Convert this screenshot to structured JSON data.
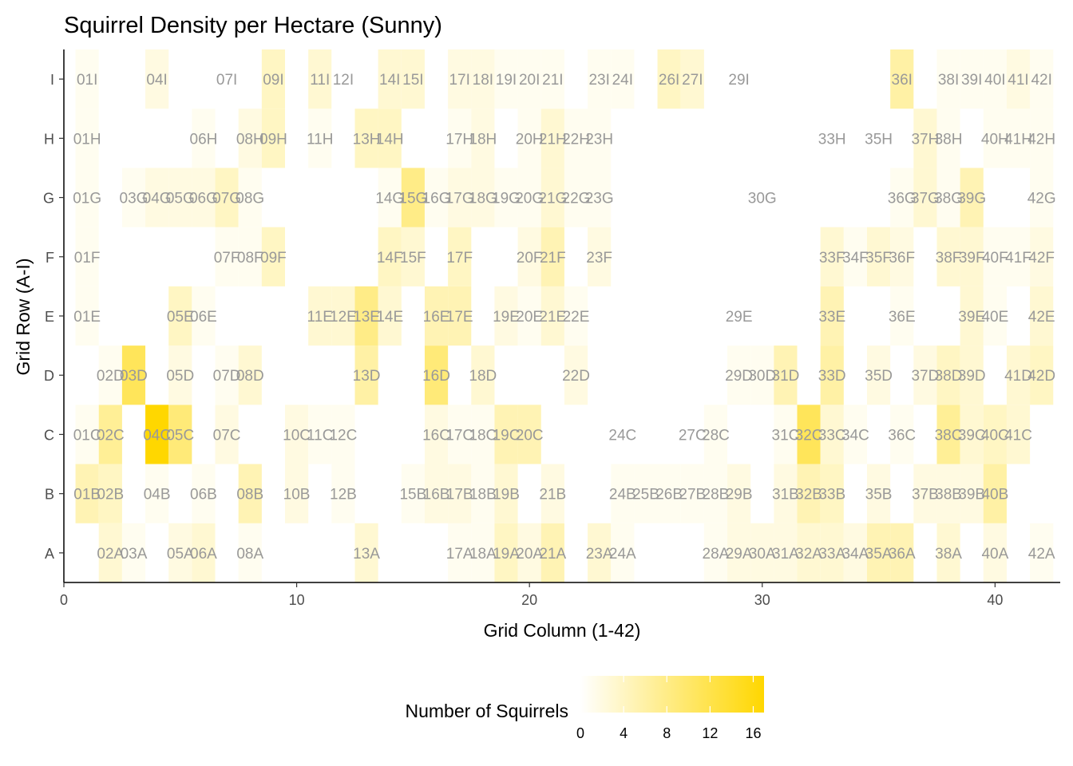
{
  "chart_data": {
    "type": "heatmap",
    "title": "Squirrel Density per Hectare (Sunny)",
    "xlabel": "Grid Column (1-42)",
    "ylabel": "Grid Row (A-I)",
    "xlim": [
      0,
      42.8
    ],
    "x_ticks": [
      0,
      10,
      20,
      30,
      40
    ],
    "y_categories": [
      "A",
      "B",
      "C",
      "D",
      "E",
      "F",
      "G",
      "H",
      "I"
    ],
    "legend": {
      "title": "Number of Squirrels",
      "position": "bottom",
      "ticks": [
        0,
        4,
        8,
        12,
        16
      ],
      "range": [
        0,
        17
      ],
      "color_low": "#ffffff",
      "color_high": "#ffd700"
    },
    "cells": [
      {
        "col": 2,
        "row": "A",
        "value": 3
      },
      {
        "col": 3,
        "row": "A",
        "value": 1
      },
      {
        "col": 5,
        "row": "A",
        "value": 2
      },
      {
        "col": 6,
        "row": "A",
        "value": 3
      },
      {
        "col": 8,
        "row": "A",
        "value": 1
      },
      {
        "col": 13,
        "row": "A",
        "value": 3
      },
      {
        "col": 17,
        "row": "A",
        "value": 1
      },
      {
        "col": 18,
        "row": "A",
        "value": 1
      },
      {
        "col": 19,
        "row": "A",
        "value": 4
      },
      {
        "col": 20,
        "row": "A",
        "value": 2
      },
      {
        "col": 21,
        "row": "A",
        "value": 5
      },
      {
        "col": 23,
        "row": "A",
        "value": 3
      },
      {
        "col": 24,
        "row": "A",
        "value": 1
      },
      {
        "col": 28,
        "row": "A",
        "value": 1
      },
      {
        "col": 29,
        "row": "A",
        "value": 2
      },
      {
        "col": 30,
        "row": "A",
        "value": 2
      },
      {
        "col": 31,
        "row": "A",
        "value": 2
      },
      {
        "col": 32,
        "row": "A",
        "value": 3
      },
      {
        "col": 33,
        "row": "A",
        "value": 3
      },
      {
        "col": 34,
        "row": "A",
        "value": 2
      },
      {
        "col": 35,
        "row": "A",
        "value": 5
      },
      {
        "col": 36,
        "row": "A",
        "value": 5
      },
      {
        "col": 38,
        "row": "A",
        "value": 3
      },
      {
        "col": 40,
        "row": "A",
        "value": 2
      },
      {
        "col": 42,
        "row": "A",
        "value": 1
      },
      {
        "col": 1,
        "row": "B",
        "value": 5
      },
      {
        "col": 2,
        "row": "B",
        "value": 4
      },
      {
        "col": 4,
        "row": "B",
        "value": 1
      },
      {
        "col": 6,
        "row": "B",
        "value": 1
      },
      {
        "col": 8,
        "row": "B",
        "value": 5
      },
      {
        "col": 10,
        "row": "B",
        "value": 2
      },
      {
        "col": 12,
        "row": "B",
        "value": 1
      },
      {
        "col": 15,
        "row": "B",
        "value": 1
      },
      {
        "col": 16,
        "row": "B",
        "value": 2
      },
      {
        "col": 17,
        "row": "B",
        "value": 2
      },
      {
        "col": 18,
        "row": "B",
        "value": 1
      },
      {
        "col": 19,
        "row": "B",
        "value": 3
      },
      {
        "col": 21,
        "row": "B",
        "value": 2
      },
      {
        "col": 24,
        "row": "B",
        "value": 1
      },
      {
        "col": 25,
        "row": "B",
        "value": 1
      },
      {
        "col": 26,
        "row": "B",
        "value": 1
      },
      {
        "col": 27,
        "row": "B",
        "value": 1
      },
      {
        "col": 28,
        "row": "B",
        "value": 1
      },
      {
        "col": 29,
        "row": "B",
        "value": 2
      },
      {
        "col": 31,
        "row": "B",
        "value": 2
      },
      {
        "col": 32,
        "row": "B",
        "value": 5
      },
      {
        "col": 33,
        "row": "B",
        "value": 4
      },
      {
        "col": 35,
        "row": "B",
        "value": 2
      },
      {
        "col": 37,
        "row": "B",
        "value": 2
      },
      {
        "col": 38,
        "row": "B",
        "value": 2
      },
      {
        "col": 39,
        "row": "B",
        "value": 2
      },
      {
        "col": 40,
        "row": "B",
        "value": 6
      },
      {
        "col": 1,
        "row": "C",
        "value": 1
      },
      {
        "col": 2,
        "row": "C",
        "value": 7
      },
      {
        "col": 4,
        "row": "C",
        "value": 17
      },
      {
        "col": 5,
        "row": "C",
        "value": 9
      },
      {
        "col": 7,
        "row": "C",
        "value": 2
      },
      {
        "col": 10,
        "row": "C",
        "value": 2
      },
      {
        "col": 11,
        "row": "C",
        "value": 1
      },
      {
        "col": 12,
        "row": "C",
        "value": 1
      },
      {
        "col": 16,
        "row": "C",
        "value": 2
      },
      {
        "col": 17,
        "row": "C",
        "value": 1
      },
      {
        "col": 18,
        "row": "C",
        "value": 1
      },
      {
        "col": 19,
        "row": "C",
        "value": 5
      },
      {
        "col": 20,
        "row": "C",
        "value": 5
      },
      {
        "col": 24,
        "row": "C",
        "value": 0
      },
      {
        "col": 27,
        "row": "C",
        "value": 0
      },
      {
        "col": 28,
        "row": "C",
        "value": 1
      },
      {
        "col": 31,
        "row": "C",
        "value": 1
      },
      {
        "col": 32,
        "row": "C",
        "value": 11
      },
      {
        "col": 33,
        "row": "C",
        "value": 3
      },
      {
        "col": 34,
        "row": "C",
        "value": 1
      },
      {
        "col": 36,
        "row": "C",
        "value": 1
      },
      {
        "col": 38,
        "row": "C",
        "value": 7
      },
      {
        "col": 39,
        "row": "C",
        "value": 3
      },
      {
        "col": 40,
        "row": "C",
        "value": 4
      },
      {
        "col": 41,
        "row": "C",
        "value": 3
      },
      {
        "col": 2,
        "row": "D",
        "value": 1
      },
      {
        "col": 3,
        "row": "D",
        "value": 11
      },
      {
        "col": 5,
        "row": "D",
        "value": 2
      },
      {
        "col": 7,
        "row": "D",
        "value": 1
      },
      {
        "col": 8,
        "row": "D",
        "value": 3
      },
      {
        "col": 13,
        "row": "D",
        "value": 6
      },
      {
        "col": 16,
        "row": "D",
        "value": 9
      },
      {
        "col": 18,
        "row": "D",
        "value": 3
      },
      {
        "col": 22,
        "row": "D",
        "value": 2
      },
      {
        "col": 29,
        "row": "D",
        "value": 1
      },
      {
        "col": 30,
        "row": "D",
        "value": 1
      },
      {
        "col": 31,
        "row": "D",
        "value": 5
      },
      {
        "col": 33,
        "row": "D",
        "value": 6
      },
      {
        "col": 35,
        "row": "D",
        "value": 2
      },
      {
        "col": 37,
        "row": "D",
        "value": 2
      },
      {
        "col": 38,
        "row": "D",
        "value": 4
      },
      {
        "col": 39,
        "row": "D",
        "value": 3
      },
      {
        "col": 41,
        "row": "D",
        "value": 3
      },
      {
        "col": 42,
        "row": "D",
        "value": 4
      },
      {
        "col": 1,
        "row": "E",
        "value": 1
      },
      {
        "col": 5,
        "row": "E",
        "value": 4
      },
      {
        "col": 6,
        "row": "E",
        "value": 1
      },
      {
        "col": 11,
        "row": "E",
        "value": 3
      },
      {
        "col": 12,
        "row": "E",
        "value": 3
      },
      {
        "col": 13,
        "row": "E",
        "value": 8
      },
      {
        "col": 14,
        "row": "E",
        "value": 3
      },
      {
        "col": 16,
        "row": "E",
        "value": 5
      },
      {
        "col": 17,
        "row": "E",
        "value": 5
      },
      {
        "col": 19,
        "row": "E",
        "value": 2
      },
      {
        "col": 20,
        "row": "E",
        "value": 1
      },
      {
        "col": 21,
        "row": "E",
        "value": 3
      },
      {
        "col": 22,
        "row": "E",
        "value": 1
      },
      {
        "col": 29,
        "row": "E",
        "value": 0
      },
      {
        "col": 33,
        "row": "E",
        "value": 5
      },
      {
        "col": 36,
        "row": "E",
        "value": 1
      },
      {
        "col": 39,
        "row": "E",
        "value": 3
      },
      {
        "col": 40,
        "row": "E",
        "value": 1
      },
      {
        "col": 42,
        "row": "E",
        "value": 3
      },
      {
        "col": 1,
        "row": "F",
        "value": 1
      },
      {
        "col": 7,
        "row": "F",
        "value": 1
      },
      {
        "col": 8,
        "row": "F",
        "value": 1
      },
      {
        "col": 9,
        "row": "F",
        "value": 4
      },
      {
        "col": 14,
        "row": "F",
        "value": 4
      },
      {
        "col": 15,
        "row": "F",
        "value": 3
      },
      {
        "col": 17,
        "row": "F",
        "value": 4
      },
      {
        "col": 20,
        "row": "F",
        "value": 2
      },
      {
        "col": 21,
        "row": "F",
        "value": 5
      },
      {
        "col": 23,
        "row": "F",
        "value": 2
      },
      {
        "col": 33,
        "row": "F",
        "value": 3
      },
      {
        "col": 34,
        "row": "F",
        "value": 1
      },
      {
        "col": 35,
        "row": "F",
        "value": 3
      },
      {
        "col": 36,
        "row": "F",
        "value": 2
      },
      {
        "col": 38,
        "row": "F",
        "value": 3
      },
      {
        "col": 39,
        "row": "F",
        "value": 3
      },
      {
        "col": 40,
        "row": "F",
        "value": 1
      },
      {
        "col": 41,
        "row": "F",
        "value": 1
      },
      {
        "col": 42,
        "row": "F",
        "value": 2
      },
      {
        "col": 1,
        "row": "G",
        "value": 1
      },
      {
        "col": 3,
        "row": "G",
        "value": 1
      },
      {
        "col": 4,
        "row": "G",
        "value": 2
      },
      {
        "col": 5,
        "row": "G",
        "value": 2
      },
      {
        "col": 6,
        "row": "G",
        "value": 2
      },
      {
        "col": 7,
        "row": "G",
        "value": 4
      },
      {
        "col": 8,
        "row": "G",
        "value": 1
      },
      {
        "col": 14,
        "row": "G",
        "value": 1
      },
      {
        "col": 15,
        "row": "G",
        "value": 8
      },
      {
        "col": 16,
        "row": "G",
        "value": 1
      },
      {
        "col": 17,
        "row": "G",
        "value": 2
      },
      {
        "col": 18,
        "row": "G",
        "value": 2
      },
      {
        "col": 19,
        "row": "G",
        "value": 1
      },
      {
        "col": 20,
        "row": "G",
        "value": 1
      },
      {
        "col": 21,
        "row": "G",
        "value": 3
      },
      {
        "col": 22,
        "row": "G",
        "value": 1
      },
      {
        "col": 23,
        "row": "G",
        "value": 1
      },
      {
        "col": 30,
        "row": "G",
        "value": 0
      },
      {
        "col": 36,
        "row": "G",
        "value": 1
      },
      {
        "col": 37,
        "row": "G",
        "value": 3
      },
      {
        "col": 38,
        "row": "G",
        "value": 1
      },
      {
        "col": 39,
        "row": "G",
        "value": 5
      },
      {
        "col": 42,
        "row": "G",
        "value": 1
      },
      {
        "col": 1,
        "row": "H",
        "value": 1
      },
      {
        "col": 6,
        "row": "H",
        "value": 1
      },
      {
        "col": 8,
        "row": "H",
        "value": 2
      },
      {
        "col": 9,
        "row": "H",
        "value": 4
      },
      {
        "col": 11,
        "row": "H",
        "value": 1
      },
      {
        "col": 13,
        "row": "H",
        "value": 4
      },
      {
        "col": 14,
        "row": "H",
        "value": 4
      },
      {
        "col": 17,
        "row": "H",
        "value": 1
      },
      {
        "col": 18,
        "row": "H",
        "value": 2
      },
      {
        "col": 20,
        "row": "H",
        "value": 1
      },
      {
        "col": 21,
        "row": "H",
        "value": 3
      },
      {
        "col": 22,
        "row": "H",
        "value": 1
      },
      {
        "col": 23,
        "row": "H",
        "value": 1
      },
      {
        "col": 33,
        "row": "H",
        "value": 0
      },
      {
        "col": 35,
        "row": "H",
        "value": 0
      },
      {
        "col": 37,
        "row": "H",
        "value": 3
      },
      {
        "col": 38,
        "row": "H",
        "value": 1
      },
      {
        "col": 40,
        "row": "H",
        "value": 1
      },
      {
        "col": 41,
        "row": "H",
        "value": 1
      },
      {
        "col": 42,
        "row": "H",
        "value": 1
      },
      {
        "col": 1,
        "row": "I",
        "value": 1
      },
      {
        "col": 4,
        "row": "I",
        "value": 2
      },
      {
        "col": 7,
        "row": "I",
        "value": 0
      },
      {
        "col": 9,
        "row": "I",
        "value": 4
      },
      {
        "col": 11,
        "row": "I",
        "value": 3
      },
      {
        "col": 12,
        "row": "I",
        "value": 0
      },
      {
        "col": 14,
        "row": "I",
        "value": 3
      },
      {
        "col": 15,
        "row": "I",
        "value": 3
      },
      {
        "col": 17,
        "row": "I",
        "value": 2
      },
      {
        "col": 18,
        "row": "I",
        "value": 2
      },
      {
        "col": 19,
        "row": "I",
        "value": 1
      },
      {
        "col": 20,
        "row": "I",
        "value": 1
      },
      {
        "col": 21,
        "row": "I",
        "value": 1
      },
      {
        "col": 23,
        "row": "I",
        "value": 1
      },
      {
        "col": 24,
        "row": "I",
        "value": 1
      },
      {
        "col": 26,
        "row": "I",
        "value": 4
      },
      {
        "col": 27,
        "row": "I",
        "value": 3
      },
      {
        "col": 29,
        "row": "I",
        "value": 0
      },
      {
        "col": 36,
        "row": "I",
        "value": 6
      },
      {
        "col": 38,
        "row": "I",
        "value": 1
      },
      {
        "col": 39,
        "row": "I",
        "value": 1
      },
      {
        "col": 40,
        "row": "I",
        "value": 1
      },
      {
        "col": 41,
        "row": "I",
        "value": 2
      },
      {
        "col": 42,
        "row": "I",
        "value": 1
      }
    ]
  }
}
